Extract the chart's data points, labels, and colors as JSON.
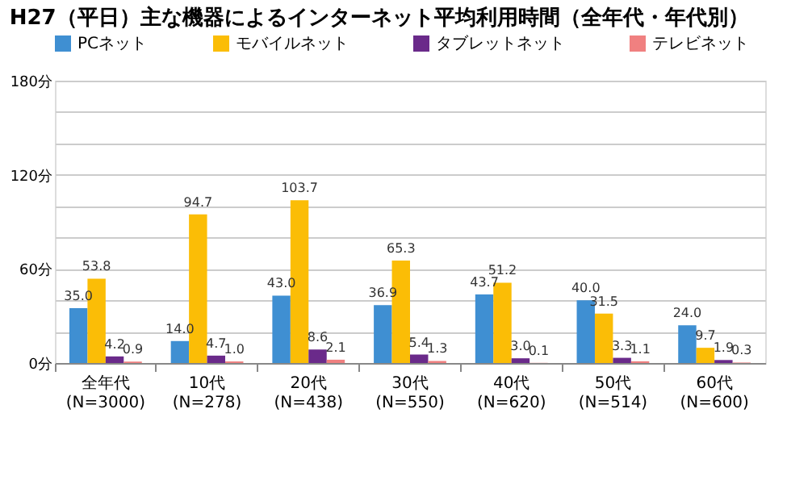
{
  "chart_data": {
    "type": "bar",
    "title": "H27（平日）主な機器によるインターネット平均利用時間（全年代・年代別）",
    "categories": [
      "全年代\n(N=3000)",
      "10代\n(N=278)",
      "20代\n(N=438)",
      "30代\n(N=550)",
      "40代\n(N=620)",
      "50代\n(N=514)",
      "60代\n(N=600)"
    ],
    "series": [
      {
        "name": "PCネット",
        "color": "#3f8fd2",
        "values": [
          35.0,
          14.0,
          43.0,
          36.9,
          43.7,
          40.0,
          24.0
        ],
        "value_labels": [
          "35.0",
          "14.0",
          "43.0",
          "36.9",
          "43.7",
          "40.0",
          "24.0"
        ]
      },
      {
        "name": "モバイルネット",
        "color": "#fbbd06",
        "values": [
          53.8,
          94.7,
          103.7,
          65.3,
          51.2,
          31.5,
          9.7
        ],
        "value_labels": [
          "53.8",
          "94.7",
          "103.7",
          "65.3",
          "51.2",
          "31.5",
          "9.7"
        ]
      },
      {
        "name": "タブレットネット",
        "color": "#6a2a8a",
        "values": [
          4.2,
          4.7,
          8.6,
          5.4,
          3.0,
          3.3,
          1.9
        ],
        "value_labels": [
          "4.2",
          "4.7",
          "8.6",
          "5.4",
          "3.0",
          "3.3",
          "1.9"
        ]
      },
      {
        "name": "テレビネット",
        "color": "#f08080",
        "values": [
          0.9,
          1.0,
          2.1,
          1.3,
          0.1,
          1.1,
          0.3
        ],
        "value_labels": [
          "0.9",
          "1.0",
          "2.1",
          "1.3",
          "0.1",
          "1.1",
          "0.3"
        ]
      }
    ],
    "ylim": [
      0,
      180
    ],
    "yticks": [
      {
        "value": 0,
        "label": "0分"
      },
      {
        "value": 20,
        "label": null
      },
      {
        "value": 40,
        "label": null
      },
      {
        "value": 60,
        "label": "60分"
      },
      {
        "value": 80,
        "label": null
      },
      {
        "value": 100,
        "label": null
      },
      {
        "value": 120,
        "label": "120分"
      },
      {
        "value": 140,
        "label": null
      },
      {
        "value": 160,
        "label": null
      },
      {
        "value": 180,
        "label": "180分"
      }
    ],
    "grid": "y",
    "legend": "top"
  }
}
